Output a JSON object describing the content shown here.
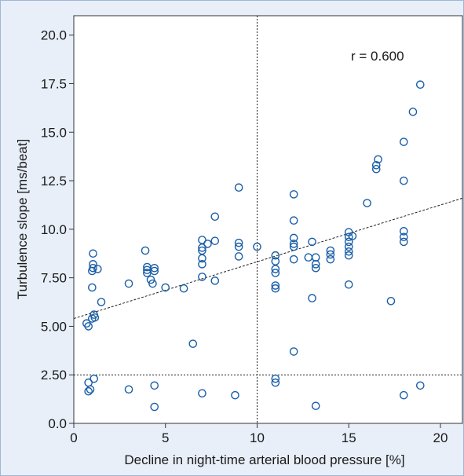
{
  "chart_data": {
    "type": "scatter",
    "title": "",
    "xlabel": "Decline in night-time arterial blood pressure [%]",
    "ylabel": "Turbulence slope [ms/beat]",
    "xlim": [
      0,
      21.2
    ],
    "ylim": [
      0,
      21.0
    ],
    "xticks": [
      0,
      5,
      10,
      15,
      20
    ],
    "xtick_labels": [
      "0",
      "5",
      "10",
      "15",
      "20"
    ],
    "yticks": [
      0,
      2.5,
      5,
      7.5,
      10,
      12.5,
      15,
      17.5,
      20
    ],
    "ytick_labels": [
      "0.0",
      "2.50",
      "5.00",
      "7.50",
      "10.0",
      "12.5",
      "15.0",
      "17.5",
      "20.0"
    ],
    "annotation": "r = 0.600",
    "grid": false,
    "marker_color": "#1a5fa8",
    "reference_lines": {
      "vertical_x": 10,
      "horizontal_y": 2.5,
      "style": "dotted"
    },
    "regression_line": {
      "x": [
        0,
        21.2
      ],
      "y": [
        5.4,
        11.6
      ]
    },
    "points": [
      [
        0.7,
        5.15
      ],
      [
        0.8,
        5.0
      ],
      [
        1.0,
        5.4
      ],
      [
        1.1,
        5.6
      ],
      [
        1.15,
        5.45
      ],
      [
        1.5,
        6.25
      ],
      [
        1.0,
        7.0
      ],
      [
        1.0,
        7.85
      ],
      [
        1.05,
        8.0
      ],
      [
        1.05,
        8.2
      ],
      [
        1.05,
        8.75
      ],
      [
        1.3,
        7.95
      ],
      [
        0.8,
        2.1
      ],
      [
        0.8,
        1.65
      ],
      [
        0.9,
        1.75
      ],
      [
        1.1,
        2.3
      ],
      [
        3.0,
        1.75
      ],
      [
        3.0,
        7.2
      ],
      [
        3.9,
        8.9
      ],
      [
        4.0,
        8.05
      ],
      [
        4.0,
        7.75
      ],
      [
        4.0,
        7.9
      ],
      [
        4.2,
        7.4
      ],
      [
        4.3,
        7.2
      ],
      [
        4.4,
        7.85
      ],
      [
        4.4,
        8.0
      ],
      [
        5.0,
        7.0
      ],
      [
        4.4,
        1.95
      ],
      [
        4.4,
        0.85
      ],
      [
        6.0,
        6.95
      ],
      [
        6.5,
        4.1
      ],
      [
        7.0,
        1.55
      ],
      [
        7.0,
        7.55
      ],
      [
        7.0,
        8.2
      ],
      [
        7.0,
        8.5
      ],
      [
        7.0,
        8.9
      ],
      [
        7.0,
        9.05
      ],
      [
        7.0,
        9.45
      ],
      [
        7.3,
        9.25
      ],
      [
        7.7,
        9.4
      ],
      [
        7.7,
        7.35
      ],
      [
        7.7,
        10.65
      ],
      [
        8.8,
        1.45
      ],
      [
        9.0,
        8.6
      ],
      [
        9.0,
        9.1
      ],
      [
        9.0,
        9.3
      ],
      [
        9.0,
        12.15
      ],
      [
        10.0,
        9.1
      ],
      [
        11.0,
        2.1
      ],
      [
        11.0,
        2.3
      ],
      [
        11.0,
        6.95
      ],
      [
        11.0,
        7.1
      ],
      [
        11.0,
        7.75
      ],
      [
        11.0,
        7.95
      ],
      [
        11.0,
        8.35
      ],
      [
        11.0,
        8.65
      ],
      [
        12.0,
        3.7
      ],
      [
        12.0,
        8.45
      ],
      [
        12.0,
        9.1
      ],
      [
        12.0,
        9.25
      ],
      [
        12.0,
        9.55
      ],
      [
        12.0,
        10.45
      ],
      [
        12.0,
        11.8
      ],
      [
        12.8,
        8.55
      ],
      [
        13.0,
        9.35
      ],
      [
        13.0,
        6.45
      ],
      [
        13.2,
        8.0
      ],
      [
        13.2,
        8.2
      ],
      [
        13.2,
        8.55
      ],
      [
        13.2,
        0.9
      ],
      [
        14.0,
        8.45
      ],
      [
        14.0,
        8.7
      ],
      [
        14.0,
        8.9
      ],
      [
        15.0,
        7.15
      ],
      [
        15.0,
        8.65
      ],
      [
        15.0,
        8.85
      ],
      [
        15.0,
        9.1
      ],
      [
        15.0,
        9.35
      ],
      [
        15.0,
        9.6
      ],
      [
        15.0,
        9.85
      ],
      [
        15.2,
        9.65
      ],
      [
        16.0,
        11.35
      ],
      [
        16.5,
        13.1
      ],
      [
        16.5,
        13.3
      ],
      [
        16.6,
        13.6
      ],
      [
        17.3,
        6.3
      ],
      [
        18.0,
        1.45
      ],
      [
        18.0,
        9.35
      ],
      [
        18.0,
        9.6
      ],
      [
        18.0,
        9.9
      ],
      [
        18.0,
        12.5
      ],
      [
        18.0,
        14.5
      ],
      [
        18.5,
        16.05
      ],
      [
        18.9,
        1.95
      ],
      [
        18.9,
        17.45
      ]
    ]
  }
}
